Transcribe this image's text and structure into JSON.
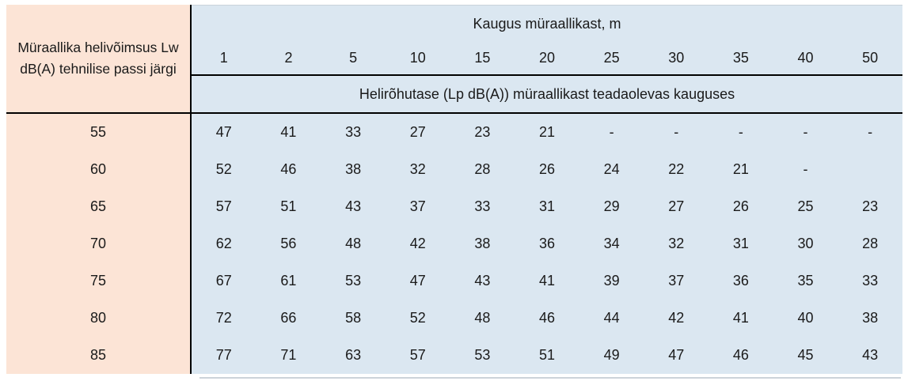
{
  "table": {
    "row_header_title": "Müraallika helivõimsus Lw dB(A) tehnilise passi järgi",
    "col_group_title": "Kaugus müraallikast, m",
    "subheader": "Helirõhutase (Lp dB(A)) müraallikast teadaolevas kauguses",
    "distances": [
      "1",
      "2",
      "5",
      "10",
      "15",
      "20",
      "25",
      "30",
      "35",
      "40",
      "50"
    ],
    "rows": [
      {
        "lw": "55",
        "values": [
          "47",
          "41",
          "33",
          "27",
          "23",
          "21",
          "-",
          "-",
          "-",
          "-",
          "-"
        ]
      },
      {
        "lw": "60",
        "values": [
          "52",
          "46",
          "38",
          "32",
          "28",
          "26",
          "24",
          "22",
          "21",
          "-",
          ""
        ]
      },
      {
        "lw": "65",
        "values": [
          "57",
          "51",
          "43",
          "37",
          "33",
          "31",
          "29",
          "27",
          "26",
          "25",
          "23"
        ]
      },
      {
        "lw": "70",
        "values": [
          "62",
          "56",
          "48",
          "42",
          "38",
          "36",
          "34",
          "32",
          "31",
          "30",
          "28"
        ]
      },
      {
        "lw": "75",
        "values": [
          "67",
          "61",
          "53",
          "47",
          "43",
          "41",
          "39",
          "37",
          "36",
          "35",
          "33"
        ]
      },
      {
        "lw": "80",
        "values": [
          "72",
          "66",
          "58",
          "52",
          "48",
          "46",
          "44",
          "42",
          "41",
          "40",
          "38"
        ]
      },
      {
        "lw": "85",
        "values": [
          "77",
          "71",
          "63",
          "57",
          "53",
          "51",
          "49",
          "47",
          "46",
          "45",
          "43"
        ]
      }
    ]
  },
  "colors": {
    "row_header_bg": "#fce4d6",
    "data_bg": "#dbe7f1",
    "grid_line": "#000000",
    "text": "#1a1a1a"
  }
}
